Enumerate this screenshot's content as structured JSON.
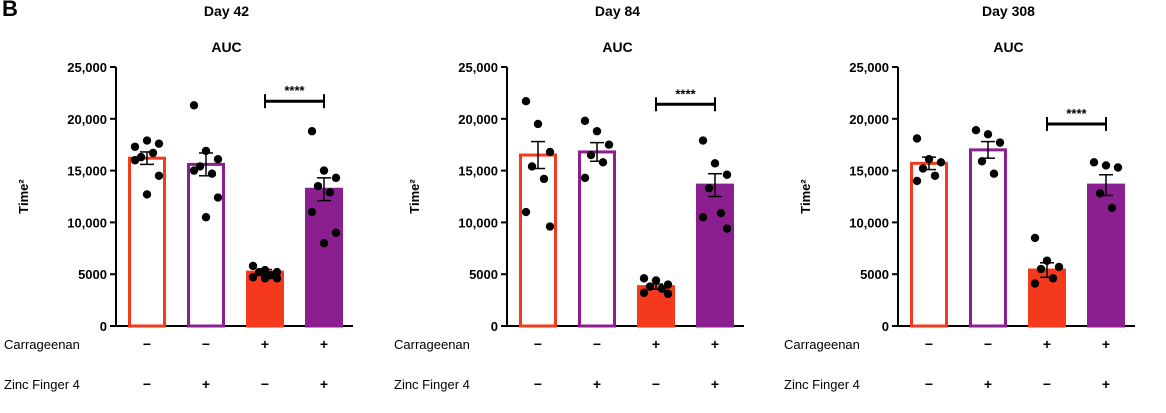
{
  "panel_label": "B",
  "colors": {
    "red": "#f5391c",
    "purple": "#8b1f8f",
    "axis": "#000000",
    "point": "#000000"
  },
  "row_labels": [
    "Carrageenan",
    "Zinc Finger 4"
  ],
  "chart_data": [
    {
      "type": "bar",
      "title": "Day 42",
      "subtitle": "AUC",
      "ylabel": "Time²",
      "ylim": [
        0,
        25000
      ],
      "yticks": [
        0,
        5000,
        10000,
        15000,
        20000,
        25000
      ],
      "ytick_labels": [
        "0",
        "5000",
        "10,000",
        "15,000",
        "20,000",
        "25,000"
      ],
      "categories": [
        {
          "carrageenan": "−",
          "zf4": "−"
        },
        {
          "carrageenan": "−",
          "zf4": "+"
        },
        {
          "carrageenan": "+",
          "zf4": "−"
        },
        {
          "carrageenan": "+",
          "zf4": "+"
        }
      ],
      "values": [
        16200,
        15600,
        5200,
        13200
      ],
      "sem": [
        600,
        1100,
        250,
        1100
      ],
      "points": [
        [
          17300,
          17900,
          17600,
          16300,
          16700,
          16000,
          14500,
          12700
        ],
        [
          21300,
          16900,
          16100,
          15400,
          14700,
          15000,
          12400,
          10500
        ],
        [
          5800,
          5400,
          5200,
          5200,
          4900,
          4700,
          4600,
          4600
        ],
        [
          18800,
          15000,
          14300,
          13500,
          12900,
          11000,
          9000,
          8000
        ]
      ],
      "fill": [
        "none",
        "none",
        "red",
        "purple"
      ],
      "stroke": [
        "red",
        "purple",
        "red",
        "purple"
      ],
      "significance": {
        "from": 2,
        "to": 3,
        "label": "****",
        "y": 21700
      }
    },
    {
      "type": "bar",
      "title": "Day 84",
      "subtitle": "AUC",
      "ylabel": "Time²",
      "ylim": [
        0,
        25000
      ],
      "yticks": [
        0,
        5000,
        10000,
        15000,
        20000,
        25000
      ],
      "ytick_labels": [
        "0",
        "5000",
        "10,000",
        "15,000",
        "20,000",
        "25,000"
      ],
      "categories": [
        {
          "carrageenan": "−",
          "zf4": "−"
        },
        {
          "carrageenan": "−",
          "zf4": "+"
        },
        {
          "carrageenan": "+",
          "zf4": "−"
        },
        {
          "carrageenan": "+",
          "zf4": "+"
        }
      ],
      "values": [
        16500,
        16800,
        3800,
        13600
      ],
      "sem": [
        1300,
        900,
        250,
        1100
      ],
      "points": [
        [
          21700,
          19500,
          16800,
          15400,
          14200,
          11000,
          9600
        ],
        [
          19800,
          18800,
          17500,
          16500,
          15800,
          14300
        ],
        [
          4600,
          4400,
          4000,
          3800,
          3600,
          3200,
          3100
        ],
        [
          17900,
          15700,
          14600,
          13300,
          10900,
          10500,
          9400
        ]
      ],
      "fill": [
        "none",
        "none",
        "red",
        "purple"
      ],
      "stroke": [
        "red",
        "purple",
        "red",
        "purple"
      ],
      "significance": {
        "from": 2,
        "to": 3,
        "label": "****",
        "y": 21400
      }
    },
    {
      "type": "bar",
      "title": "Day 308",
      "subtitle": "AUC",
      "ylabel": "Time²",
      "ylim": [
        0,
        25000
      ],
      "yticks": [
        0,
        5000,
        10000,
        15000,
        20000,
        25000
      ],
      "ytick_labels": [
        "0",
        "5000",
        "10,000",
        "15,000",
        "20,000",
        "25,000"
      ],
      "categories": [
        {
          "carrageenan": "−",
          "zf4": "−"
        },
        {
          "carrageenan": "−",
          "zf4": "+"
        },
        {
          "carrageenan": "+",
          "zf4": "−"
        },
        {
          "carrageenan": "+",
          "zf4": "+"
        }
      ],
      "values": [
        15700,
        17000,
        5400,
        13600
      ],
      "sem": [
        600,
        800,
        700,
        1000
      ],
      "points": [
        [
          18100,
          16100,
          15800,
          15200,
          14500,
          14000
        ],
        [
          18900,
          18500,
          17700,
          15900,
          14700
        ],
        [
          8500,
          6300,
          5700,
          5500,
          4600,
          4100
        ],
        [
          15800,
          15500,
          15300,
          12800,
          11400
        ]
      ],
      "fill": [
        "none",
        "none",
        "red",
        "purple"
      ],
      "stroke": [
        "red",
        "purple",
        "red",
        "purple"
      ],
      "significance": {
        "from": 2,
        "to": 3,
        "label": "****",
        "y": 19500
      }
    }
  ]
}
